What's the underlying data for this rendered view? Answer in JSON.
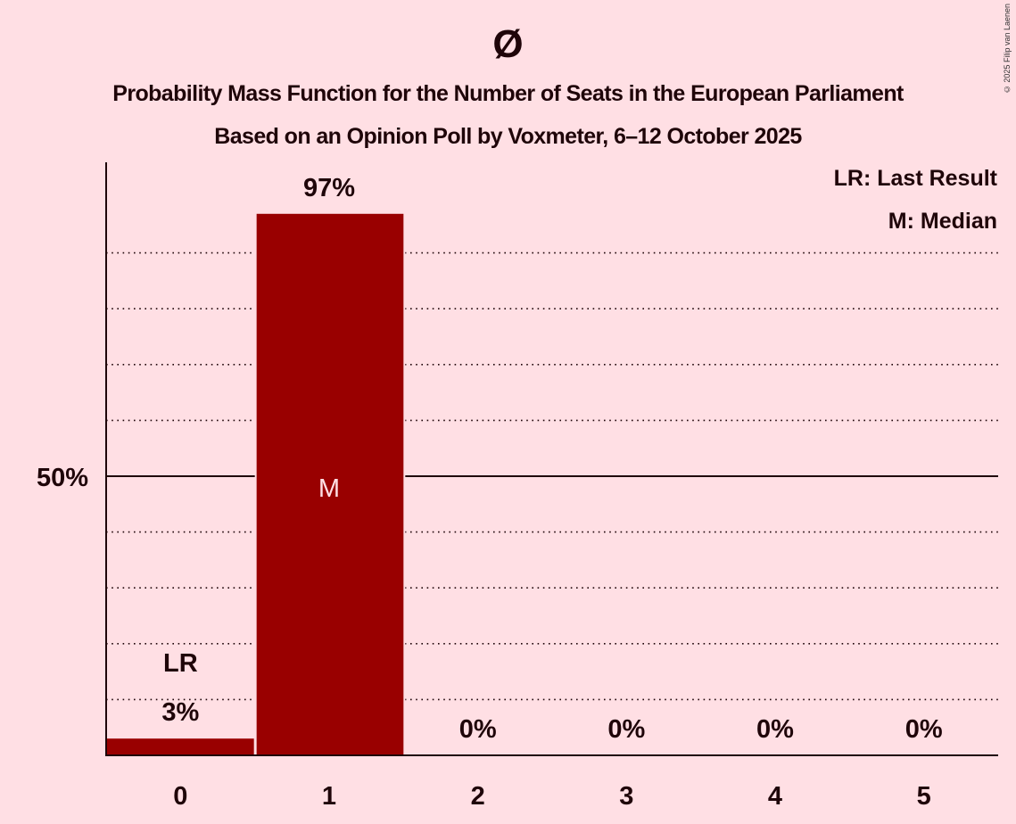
{
  "header": {
    "party_symbol": "Ø",
    "title": "Probability Mass Function for the Number of Seats in the European Parliament",
    "subtitle": "Based on an Opinion Poll by Voxmeter, 6–12 October 2025",
    "copyright": "© 2025 Filip van Laenen"
  },
  "legend": {
    "last_result": "LR: Last Result",
    "median": "M: Median"
  },
  "colors": {
    "background": "#ffdfe4",
    "bar": "#990000",
    "text": "#1f0509",
    "median_label": "#ffdfe4"
  },
  "chart_data": {
    "type": "bar",
    "title": "Probability Mass Function for the Number of Seats in the European Parliament",
    "subtitle": "Based on an Opinion Poll by Voxmeter, 6–12 October 2025",
    "xlabel": "",
    "ylabel": "",
    "categories": [
      "0",
      "1",
      "2",
      "3",
      "4",
      "5"
    ],
    "values": [
      3,
      97,
      0,
      0,
      0,
      0
    ],
    "value_labels": [
      "3%",
      "97%",
      "0%",
      "0%",
      "0%",
      "0%"
    ],
    "ylim": [
      0,
      100
    ],
    "y_ticks": [
      {
        "value": 50,
        "label": "50%"
      }
    ],
    "gridlines": {
      "dotted_every": 10,
      "solid_at": 50
    },
    "annotations": [
      {
        "category": "0",
        "label": "LR",
        "meaning": "Last Result"
      },
      {
        "category": "1",
        "label": "M",
        "meaning": "Median"
      }
    ],
    "legend_position": "top-right"
  }
}
